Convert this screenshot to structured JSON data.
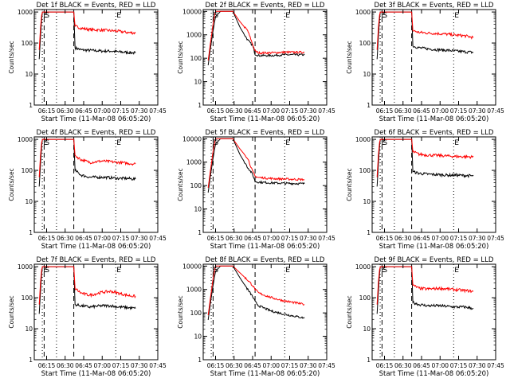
{
  "figure": {
    "xlabel": "Start Time (11-Mar-08 06:05:20)",
    "ylabel": "Counts/sec",
    "xticks": [
      "06:15",
      "06:30",
      "06:45",
      "07:00",
      "07:15",
      "07:30",
      "07:45"
    ],
    "yticks": [
      "1",
      "10",
      "100",
      "1000",
      "10000"
    ],
    "colors": {
      "events": "#000000",
      "lld": "#ff0000",
      "axes": "#000000"
    }
  },
  "chart_data": [
    {
      "type": "line",
      "title": "Det 1f BLACK = Events, RED = LLD",
      "ylim": [
        1,
        1200
      ],
      "annotations": [
        {
          "label": "E",
          "x": 6.5
        },
        {
          "label": "S",
          "x": 8.0
        },
        {
          "label": "E",
          "x": 66.0
        }
      ],
      "vlines": {
        "dashed": [
          8.0,
          32.0
        ],
        "dotted": [
          6.5,
          18.0,
          66.0
        ]
      },
      "series": [
        {
          "name": "Events",
          "x": [
            4,
            5,
            6,
            6.6,
            8,
            32,
            33,
            38,
            45,
            55,
            62,
            68,
            75,
            82
          ],
          "y": [
            30,
            150,
            600,
            1000,
            1000,
            1000,
            70,
            60,
            58,
            55,
            55,
            52,
            50,
            48
          ]
        },
        {
          "name": "LLD",
          "x": [
            4,
            5,
            6,
            6.6,
            8,
            32,
            33,
            38,
            45,
            55,
            62,
            68,
            75,
            82
          ],
          "y": [
            60,
            300,
            800,
            1000,
            1000,
            1000,
            350,
            300,
            270,
            260,
            250,
            240,
            220,
            210
          ]
        }
      ]
    },
    {
      "type": "line",
      "title": "Det 2f BLACK = Events, RED = LLD",
      "ylim": [
        1,
        12000
      ],
      "annotations": [
        {
          "label": "E",
          "x": 6.5
        },
        {
          "label": "S",
          "x": 8.0
        },
        {
          "label": "E",
          "x": 66.0
        }
      ],
      "vlines": {
        "dashed": [
          8.0,
          42.0
        ],
        "dotted": [
          6.5,
          24.0,
          66.0
        ]
      },
      "series": [
        {
          "name": "Events",
          "x": [
            4,
            6,
            8,
            10,
            14,
            24,
            30,
            36,
            40,
            42,
            45,
            55,
            65,
            82
          ],
          "y": [
            50,
            300,
            1500,
            6000,
            10000,
            10000,
            2000,
            600,
            350,
            150,
            130,
            130,
            140,
            140
          ]
        },
        {
          "name": "LLD",
          "x": [
            4,
            6,
            8,
            10,
            14,
            24,
            30,
            36,
            40,
            42,
            45,
            55,
            65,
            82
          ],
          "y": [
            80,
            500,
            3000,
            10000,
            10000,
            10000,
            3500,
            1500,
            400,
            200,
            170,
            170,
            180,
            180
          ]
        }
      ]
    },
    {
      "type": "line",
      "title": "Det 3f BLACK = Events, RED = LLD",
      "ylim": [
        1,
        1200
      ],
      "annotations": [
        {
          "label": "E",
          "x": 6.5
        },
        {
          "label": "S",
          "x": 8.0
        },
        {
          "label": "E",
          "x": 66.0
        }
      ],
      "vlines": {
        "dashed": [
          8.0,
          32.0
        ],
        "dotted": [
          6.5,
          18.0,
          66.0
        ]
      },
      "series": [
        {
          "name": "Events",
          "x": [
            4,
            5,
            6,
            6.6,
            8,
            32,
            33,
            38,
            45,
            55,
            62,
            68,
            75,
            82
          ],
          "y": [
            30,
            150,
            600,
            1000,
            1000,
            1000,
            80,
            70,
            65,
            60,
            58,
            55,
            52,
            50
          ]
        },
        {
          "name": "LLD",
          "x": [
            4,
            5,
            6,
            6.6,
            8,
            32,
            33,
            38,
            45,
            55,
            62,
            68,
            75,
            82
          ],
          "y": [
            60,
            300,
            800,
            1000,
            1000,
            1000,
            250,
            220,
            210,
            200,
            190,
            180,
            170,
            150
          ]
        }
      ]
    },
    {
      "type": "line",
      "title": "Det 4f BLACK = Events, RED = LLD",
      "ylim": [
        1,
        1200
      ],
      "annotations": [
        {
          "label": "E",
          "x": 6.5
        },
        {
          "label": "S",
          "x": 8.0
        },
        {
          "label": "E",
          "x": 66.0
        }
      ],
      "vlines": {
        "dashed": [
          8.0,
          32.0
        ],
        "dotted": [
          6.5,
          18.0,
          66.0
        ]
      },
      "series": [
        {
          "name": "Events",
          "x": [
            4,
            5,
            6,
            6.6,
            8,
            32,
            33,
            38,
            45,
            55,
            62,
            68,
            75,
            82
          ],
          "y": [
            30,
            150,
            600,
            1000,
            1000,
            1000,
            100,
            70,
            60,
            60,
            58,
            55,
            55,
            52
          ]
        },
        {
          "name": "LLD",
          "x": [
            4,
            5,
            6,
            6.6,
            8,
            32,
            33,
            38,
            45,
            55,
            62,
            68,
            75,
            82
          ],
          "y": [
            60,
            300,
            800,
            1000,
            1000,
            1000,
            300,
            220,
            180,
            200,
            190,
            180,
            170,
            160
          ]
        }
      ]
    },
    {
      "type": "line",
      "title": "Det 5f BLACK = Events, RED = LLD",
      "ylim": [
        1,
        12000
      ],
      "annotations": [
        {
          "label": "E",
          "x": 6.5
        },
        {
          "label": "S",
          "x": 8.0
        },
        {
          "label": "E",
          "x": 66.0
        }
      ],
      "vlines": {
        "dashed": [
          8.0,
          42.0
        ],
        "dotted": [
          6.5,
          24.0,
          66.0
        ]
      },
      "series": [
        {
          "name": "Events",
          "x": [
            4,
            6,
            8,
            10,
            14,
            24,
            30,
            36,
            40,
            42,
            45,
            55,
            65,
            82
          ],
          "y": [
            50,
            300,
            1500,
            6000,
            10000,
            10000,
            2000,
            600,
            300,
            150,
            140,
            130,
            125,
            120
          ]
        },
        {
          "name": "LLD",
          "x": [
            4,
            6,
            8,
            10,
            14,
            24,
            30,
            36,
            40,
            42,
            45,
            55,
            65,
            82
          ],
          "y": [
            80,
            500,
            3000,
            10000,
            10000,
            10000,
            3500,
            1500,
            400,
            250,
            220,
            200,
            190,
            180
          ]
        }
      ]
    },
    {
      "type": "line",
      "title": "Det 6f BLACK = Events, RED = LLD",
      "ylim": [
        1,
        1200
      ],
      "annotations": [
        {
          "label": "E",
          "x": 6.5
        },
        {
          "label": "S",
          "x": 8.0
        },
        {
          "label": "E",
          "x": 66.0
        }
      ],
      "vlines": {
        "dashed": [
          8.0,
          32.0
        ],
        "dotted": [
          6.5,
          18.0,
          66.0
        ]
      },
      "series": [
        {
          "name": "Events",
          "x": [
            4,
            5,
            6,
            6.6,
            8,
            32,
            33,
            38,
            45,
            55,
            62,
            68,
            75,
            82
          ],
          "y": [
            30,
            150,
            600,
            1000,
            1000,
            1000,
            90,
            80,
            75,
            72,
            70,
            70,
            68,
            66
          ]
        },
        {
          "name": "LLD",
          "x": [
            4,
            5,
            6,
            6.6,
            8,
            32,
            33,
            38,
            45,
            55,
            62,
            68,
            75,
            82
          ],
          "y": [
            60,
            300,
            800,
            1000,
            1000,
            1000,
            400,
            330,
            310,
            300,
            290,
            280,
            275,
            270
          ]
        }
      ]
    },
    {
      "type": "line",
      "title": "Det 7f BLACK = Events, RED = LLD",
      "ylim": [
        1,
        1200
      ],
      "annotations": [
        {
          "label": "E",
          "x": 6.5
        },
        {
          "label": "S",
          "x": 8.0
        },
        {
          "label": "E",
          "x": 66.0
        }
      ],
      "vlines": {
        "dashed": [
          8.0,
          32.0
        ],
        "dotted": [
          6.5,
          18.0,
          66.0
        ]
      },
      "series": [
        {
          "name": "Events",
          "x": [
            4,
            5,
            6,
            6.6,
            8,
            32,
            33,
            38,
            45,
            55,
            62,
            68,
            75,
            82
          ],
          "y": [
            30,
            150,
            600,
            1000,
            1000,
            1000,
            60,
            55,
            50,
            55,
            55,
            50,
            48,
            45
          ]
        },
        {
          "name": "LLD",
          "x": [
            4,
            5,
            6,
            6.6,
            8,
            32,
            33,
            38,
            45,
            55,
            62,
            68,
            75,
            82
          ],
          "y": [
            60,
            300,
            800,
            1000,
            1000,
            1000,
            200,
            140,
            120,
            150,
            160,
            140,
            120,
            110
          ]
        }
      ]
    },
    {
      "type": "line",
      "title": "Det 8f BLACK = Events, RED = LLD",
      "ylim": [
        1,
        12000
      ],
      "annotations": [
        {
          "label": "E",
          "x": 6.5
        },
        {
          "label": "S",
          "x": 8.0
        },
        {
          "label": "E",
          "x": 66.0
        }
      ],
      "vlines": {
        "dashed": [
          8.0,
          42.0
        ],
        "dotted": [
          6.5,
          24.0,
          66.0
        ]
      },
      "series": [
        {
          "name": "Events",
          "x": [
            4,
            6,
            8,
            10,
            14,
            24,
            30,
            36,
            40,
            42,
            45,
            55,
            65,
            82
          ],
          "y": [
            50,
            300,
            1500,
            6000,
            10000,
            10000,
            3000,
            1000,
            500,
            300,
            200,
            120,
            90,
            60
          ]
        },
        {
          "name": "LLD",
          "x": [
            4,
            6,
            8,
            10,
            14,
            24,
            30,
            36,
            40,
            42,
            45,
            55,
            65,
            82
          ],
          "y": [
            80,
            500,
            3000,
            10000,
            10000,
            10000,
            5000,
            2500,
            1500,
            1000,
            700,
            450,
            330,
            230
          ]
        }
      ]
    },
    {
      "type": "line",
      "title": "Det 9f BLACK = Events, RED = LLD",
      "ylim": [
        1,
        1200
      ],
      "annotations": [
        {
          "label": "E",
          "x": 6.5
        },
        {
          "label": "S",
          "x": 8.0
        },
        {
          "label": "E",
          "x": 66.0
        }
      ],
      "vlines": {
        "dashed": [
          8.0,
          32.0
        ],
        "dotted": [
          6.5,
          18.0,
          66.0
        ]
      },
      "series": [
        {
          "name": "Events",
          "x": [
            4,
            5,
            6,
            6.6,
            8,
            32,
            33,
            38,
            45,
            55,
            62,
            68,
            75,
            82
          ],
          "y": [
            30,
            150,
            600,
            1000,
            1000,
            1000,
            70,
            60,
            55,
            55,
            52,
            50,
            50,
            45
          ]
        },
        {
          "name": "LLD",
          "x": [
            4,
            5,
            6,
            6.6,
            8,
            32,
            33,
            38,
            45,
            55,
            62,
            68,
            75,
            82
          ],
          "y": [
            60,
            300,
            800,
            1000,
            1000,
            1000,
            250,
            200,
            190,
            200,
            190,
            180,
            170,
            160
          ]
        }
      ]
    }
  ]
}
